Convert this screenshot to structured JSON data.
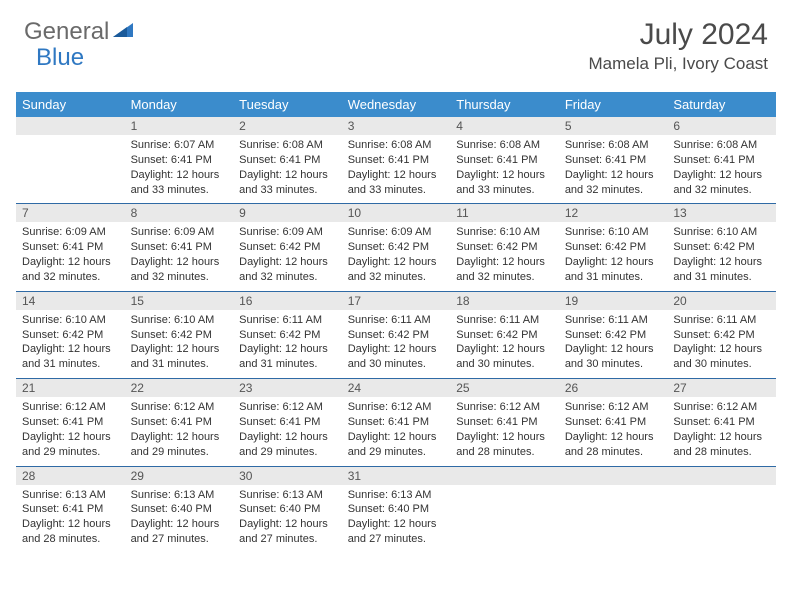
{
  "logo": {
    "text1": "General",
    "text2": "Blue"
  },
  "title": "July 2024",
  "location": "Mamela Pli, Ivory Coast",
  "header_bg": "#3b8ccc",
  "daynum_bg": "#e9e9e9",
  "rule_color": "#2f6aa5",
  "weekdays": [
    "Sunday",
    "Monday",
    "Tuesday",
    "Wednesday",
    "Thursday",
    "Friday",
    "Saturday"
  ],
  "weeks": [
    [
      null,
      {
        "n": "1",
        "sr": "6:07 AM",
        "ss": "6:41 PM",
        "dl": "12 hours and 33 minutes."
      },
      {
        "n": "2",
        "sr": "6:08 AM",
        "ss": "6:41 PM",
        "dl": "12 hours and 33 minutes."
      },
      {
        "n": "3",
        "sr": "6:08 AM",
        "ss": "6:41 PM",
        "dl": "12 hours and 33 minutes."
      },
      {
        "n": "4",
        "sr": "6:08 AM",
        "ss": "6:41 PM",
        "dl": "12 hours and 33 minutes."
      },
      {
        "n": "5",
        "sr": "6:08 AM",
        "ss": "6:41 PM",
        "dl": "12 hours and 32 minutes."
      },
      {
        "n": "6",
        "sr": "6:08 AM",
        "ss": "6:41 PM",
        "dl": "12 hours and 32 minutes."
      }
    ],
    [
      {
        "n": "7",
        "sr": "6:09 AM",
        "ss": "6:41 PM",
        "dl": "12 hours and 32 minutes."
      },
      {
        "n": "8",
        "sr": "6:09 AM",
        "ss": "6:41 PM",
        "dl": "12 hours and 32 minutes."
      },
      {
        "n": "9",
        "sr": "6:09 AM",
        "ss": "6:42 PM",
        "dl": "12 hours and 32 minutes."
      },
      {
        "n": "10",
        "sr": "6:09 AM",
        "ss": "6:42 PM",
        "dl": "12 hours and 32 minutes."
      },
      {
        "n": "11",
        "sr": "6:10 AM",
        "ss": "6:42 PM",
        "dl": "12 hours and 32 minutes."
      },
      {
        "n": "12",
        "sr": "6:10 AM",
        "ss": "6:42 PM",
        "dl": "12 hours and 31 minutes."
      },
      {
        "n": "13",
        "sr": "6:10 AM",
        "ss": "6:42 PM",
        "dl": "12 hours and 31 minutes."
      }
    ],
    [
      {
        "n": "14",
        "sr": "6:10 AM",
        "ss": "6:42 PM",
        "dl": "12 hours and 31 minutes."
      },
      {
        "n": "15",
        "sr": "6:10 AM",
        "ss": "6:42 PM",
        "dl": "12 hours and 31 minutes."
      },
      {
        "n": "16",
        "sr": "6:11 AM",
        "ss": "6:42 PM",
        "dl": "12 hours and 31 minutes."
      },
      {
        "n": "17",
        "sr": "6:11 AM",
        "ss": "6:42 PM",
        "dl": "12 hours and 30 minutes."
      },
      {
        "n": "18",
        "sr": "6:11 AM",
        "ss": "6:42 PM",
        "dl": "12 hours and 30 minutes."
      },
      {
        "n": "19",
        "sr": "6:11 AM",
        "ss": "6:42 PM",
        "dl": "12 hours and 30 minutes."
      },
      {
        "n": "20",
        "sr": "6:11 AM",
        "ss": "6:42 PM",
        "dl": "12 hours and 30 minutes."
      }
    ],
    [
      {
        "n": "21",
        "sr": "6:12 AM",
        "ss": "6:41 PM",
        "dl": "12 hours and 29 minutes."
      },
      {
        "n": "22",
        "sr": "6:12 AM",
        "ss": "6:41 PM",
        "dl": "12 hours and 29 minutes."
      },
      {
        "n": "23",
        "sr": "6:12 AM",
        "ss": "6:41 PM",
        "dl": "12 hours and 29 minutes."
      },
      {
        "n": "24",
        "sr": "6:12 AM",
        "ss": "6:41 PM",
        "dl": "12 hours and 29 minutes."
      },
      {
        "n": "25",
        "sr": "6:12 AM",
        "ss": "6:41 PM",
        "dl": "12 hours and 28 minutes."
      },
      {
        "n": "26",
        "sr": "6:12 AM",
        "ss": "6:41 PM",
        "dl": "12 hours and 28 minutes."
      },
      {
        "n": "27",
        "sr": "6:12 AM",
        "ss": "6:41 PM",
        "dl": "12 hours and 28 minutes."
      }
    ],
    [
      {
        "n": "28",
        "sr": "6:13 AM",
        "ss": "6:41 PM",
        "dl": "12 hours and 28 minutes."
      },
      {
        "n": "29",
        "sr": "6:13 AM",
        "ss": "6:40 PM",
        "dl": "12 hours and 27 minutes."
      },
      {
        "n": "30",
        "sr": "6:13 AM",
        "ss": "6:40 PM",
        "dl": "12 hours and 27 minutes."
      },
      {
        "n": "31",
        "sr": "6:13 AM",
        "ss": "6:40 PM",
        "dl": "12 hours and 27 minutes."
      },
      null,
      null,
      null
    ]
  ],
  "labels": {
    "sunrise": "Sunrise:",
    "sunset": "Sunset:",
    "daylight": "Daylight:"
  }
}
